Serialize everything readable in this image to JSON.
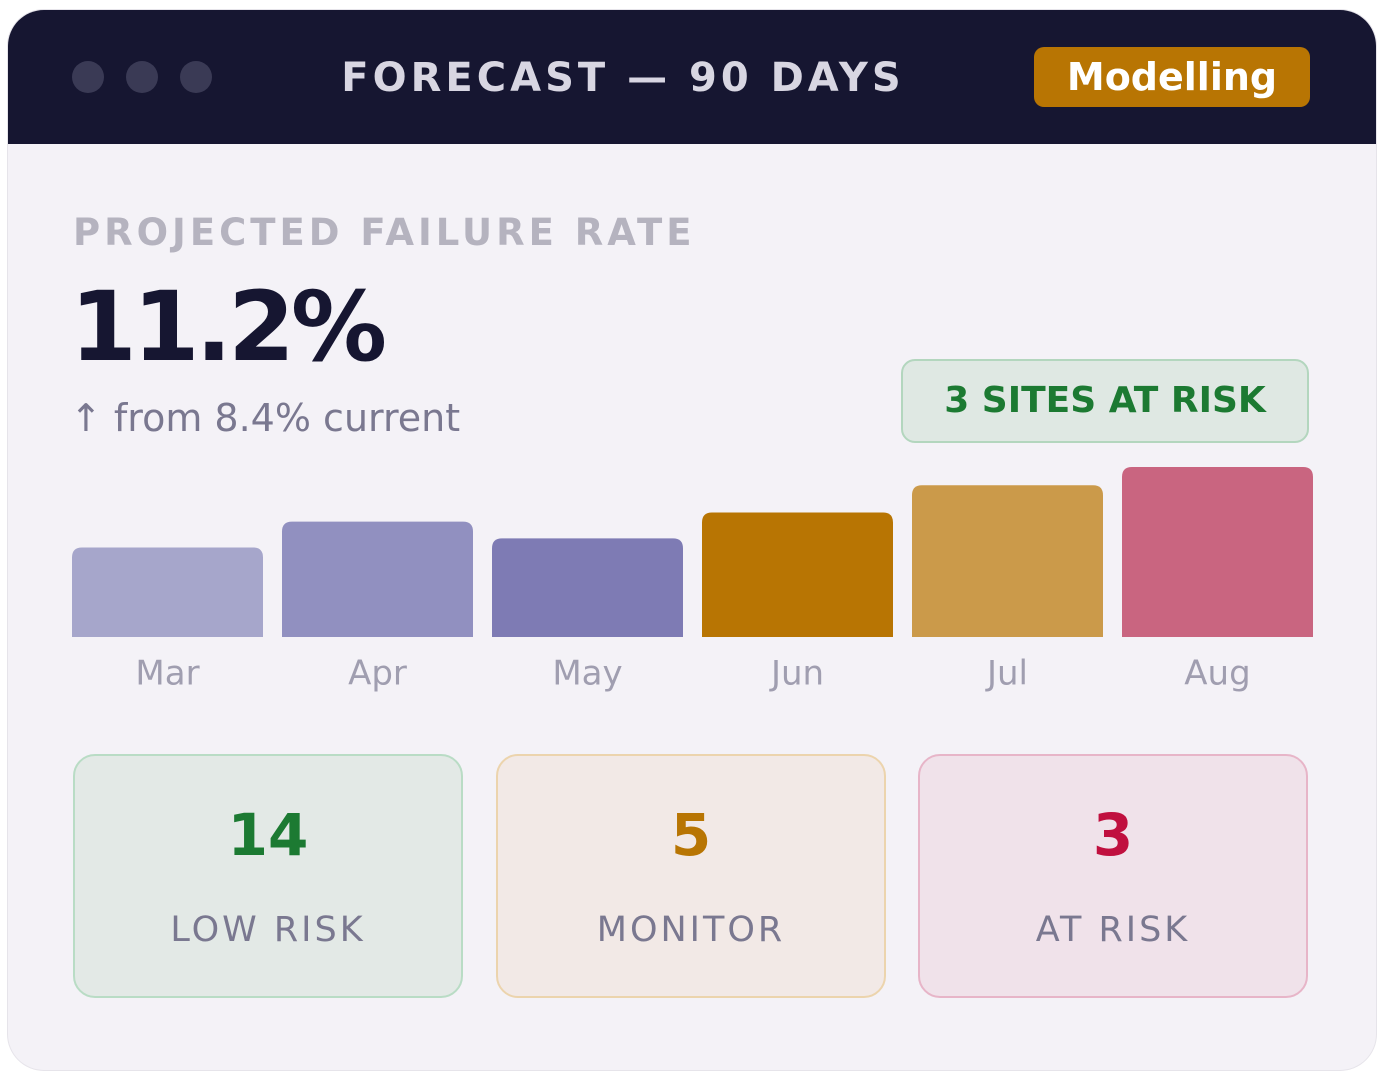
{
  "window": {
    "title": "FORECAST — 90 DAYS",
    "badge": "Modelling"
  },
  "metric": {
    "label": "PROJECTED FAILURE RATE",
    "value": "11.2%",
    "change": "↑ from 8.4% current"
  },
  "alert": "3 SITES AT RISK",
  "chart_data": {
    "type": "bar",
    "categories": [
      "Mar",
      "Apr",
      "May",
      "Jun",
      "Jul",
      "Aug"
    ],
    "values": [
      5.9,
      7.6,
      6.5,
      8.2,
      10.0,
      11.2
    ],
    "colors": [
      "#a6a6cb",
      "#9190c0",
      "#7e7bb4",
      "#b87503",
      "#cb9a4a",
      "#c96580"
    ]
  },
  "summary": [
    {
      "count": 14,
      "label": "LOW RISK"
    },
    {
      "count": 5,
      "label": "MONITOR"
    },
    {
      "count": 3,
      "label": "AT RISK"
    }
  ]
}
